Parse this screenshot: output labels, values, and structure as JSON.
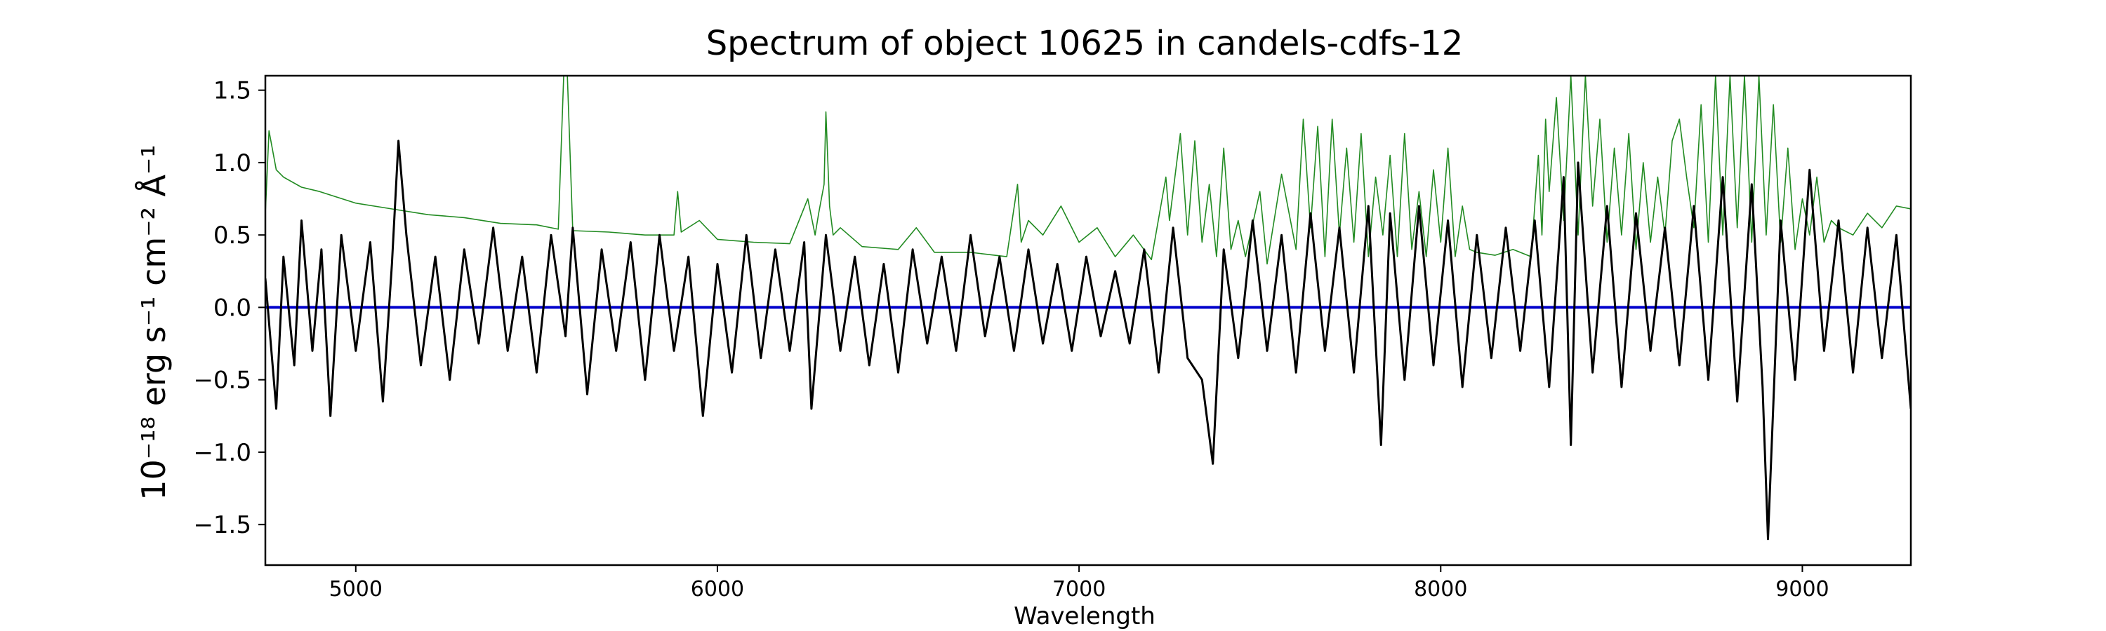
{
  "chart_data": {
    "type": "line",
    "title": "Spectrum of object 10625 in candels-cdfs-12",
    "xlabel": "Wavelength",
    "ylabel": "10⁻¹⁸ erg s⁻¹ cm⁻² Å⁻¹",
    "xlim": [
      4750,
      9300
    ],
    "ylim": [
      -1.78,
      1.6
    ],
    "x_ticks": [
      5000,
      6000,
      7000,
      8000,
      9000
    ],
    "y_ticks": [
      -1.5,
      -1.0,
      -0.5,
      0.0,
      0.5,
      1.0,
      1.5
    ],
    "y_tick_labels": [
      "−1.5",
      "−1.0",
      "−0.5",
      "0.0",
      "0.5",
      "1.0",
      "1.5"
    ],
    "grid": false,
    "colors": {
      "flux": "#000000",
      "error": "#228B22",
      "zero": "#0000cc"
    },
    "series": [
      {
        "role": "flux",
        "x": [
          4750,
          4780,
          4800,
          4830,
          4850,
          4880,
          4905,
          4930,
          4960,
          5000,
          5040,
          5075,
          5100,
          5118,
          5140,
          5180,
          5220,
          5260,
          5300,
          5340,
          5380,
          5420,
          5460,
          5500,
          5540,
          5580,
          5600,
          5640,
          5680,
          5720,
          5760,
          5800,
          5840,
          5880,
          5920,
          5960,
          6000,
          6040,
          6080,
          6120,
          6160,
          6200,
          6240,
          6260,
          6300,
          6340,
          6380,
          6420,
          6460,
          6500,
          6540,
          6580,
          6620,
          6660,
          6700,
          6740,
          6780,
          6820,
          6860,
          6900,
          6940,
          6980,
          7020,
          7060,
          7100,
          7140,
          7180,
          7220,
          7260,
          7300,
          7340,
          7370,
          7400,
          7440,
          7480,
          7520,
          7560,
          7600,
          7640,
          7680,
          7720,
          7760,
          7800,
          7835,
          7860,
          7900,
          7940,
          7980,
          8020,
          8060,
          8100,
          8140,
          8180,
          8220,
          8260,
          8300,
          8340,
          8360,
          8380,
          8420,
          8460,
          8500,
          8540,
          8580,
          8620,
          8660,
          8700,
          8740,
          8780,
          8820,
          8860,
          8890,
          8905,
          8940,
          8980,
          9020,
          9060,
          9100,
          9140,
          9180,
          9220,
          9260,
          9300
        ],
        "y": [
          0.2,
          -0.7,
          0.35,
          -0.4,
          0.6,
          -0.3,
          0.4,
          -0.75,
          0.5,
          -0.3,
          0.45,
          -0.65,
          0.3,
          1.15,
          0.5,
          -0.4,
          0.35,
          -0.5,
          0.4,
          -0.25,
          0.55,
          -0.3,
          0.35,
          -0.45,
          0.5,
          -0.2,
          0.55,
          -0.6,
          0.4,
          -0.3,
          0.45,
          -0.5,
          0.5,
          -0.3,
          0.35,
          -0.75,
          0.3,
          -0.45,
          0.5,
          -0.35,
          0.4,
          -0.3,
          0.45,
          -0.7,
          0.5,
          -0.3,
          0.35,
          -0.4,
          0.3,
          -0.45,
          0.4,
          -0.25,
          0.35,
          -0.3,
          0.5,
          -0.2,
          0.35,
          -0.3,
          0.4,
          -0.25,
          0.3,
          -0.3,
          0.35,
          -0.2,
          0.25,
          -0.25,
          0.4,
          -0.45,
          0.55,
          -0.35,
          -0.5,
          -1.08,
          0.4,
          -0.35,
          0.6,
          -0.3,
          0.5,
          -0.45,
          0.65,
          -0.3,
          0.55,
          -0.45,
          0.7,
          -0.95,
          0.65,
          -0.5,
          0.7,
          -0.4,
          0.6,
          -0.55,
          0.5,
          -0.35,
          0.55,
          -0.3,
          0.6,
          -0.55,
          0.9,
          -0.95,
          1.0,
          -0.45,
          0.7,
          -0.55,
          0.65,
          -0.3,
          0.55,
          -0.4,
          0.7,
          -0.5,
          0.9,
          -0.65,
          0.85,
          -0.55,
          -1.6,
          0.6,
          -0.5,
          0.95,
          -0.3,
          0.6,
          -0.45,
          0.55,
          -0.35,
          0.5,
          -0.7
        ]
      },
      {
        "role": "error",
        "x": [
          4750,
          4760,
          4780,
          4800,
          4850,
          4900,
          4950,
          5000,
          5100,
          5200,
          5300,
          5400,
          5500,
          5560,
          5575,
          5585,
          5600,
          5700,
          5800,
          5880,
          5890,
          5900,
          5950,
          6000,
          6100,
          6200,
          6250,
          6270,
          6280,
          6295,
          6300,
          6310,
          6320,
          6340,
          6400,
          6500,
          6550,
          6600,
          6700,
          6800,
          6830,
          6840,
          6860,
          6900,
          6950,
          7000,
          7050,
          7100,
          7150,
          7200,
          7240,
          7250,
          7280,
          7300,
          7320,
          7340,
          7360,
          7380,
          7400,
          7420,
          7440,
          7460,
          7500,
          7520,
          7560,
          7600,
          7620,
          7640,
          7660,
          7680,
          7700,
          7720,
          7740,
          7760,
          7780,
          7800,
          7820,
          7840,
          7860,
          7880,
          7900,
          7920,
          7940,
          7960,
          7980,
          8000,
          8020,
          8040,
          8060,
          8080,
          8100,
          8150,
          8200,
          8250,
          8270,
          8280,
          8290,
          8300,
          8320,
          8340,
          8360,
          8380,
          8400,
          8420,
          8440,
          8460,
          8480,
          8500,
          8520,
          8540,
          8560,
          8580,
          8600,
          8620,
          8640,
          8660,
          8680,
          8700,
          8720,
          8740,
          8760,
          8780,
          8800,
          8820,
          8840,
          8860,
          8880,
          8900,
          8920,
          8940,
          8960,
          8980,
          9000,
          9020,
          9040,
          9060,
          9080,
          9100,
          9140,
          9180,
          9220,
          9260,
          9300
        ],
        "y": [
          0.65,
          1.22,
          0.95,
          0.9,
          0.83,
          0.8,
          0.76,
          0.72,
          0.68,
          0.64,
          0.62,
          0.58,
          0.57,
          0.54,
          1.6,
          1.6,
          0.53,
          0.52,
          0.5,
          0.5,
          0.8,
          0.52,
          0.6,
          0.47,
          0.45,
          0.44,
          0.75,
          0.5,
          0.65,
          0.85,
          1.35,
          0.7,
          0.5,
          0.55,
          0.42,
          0.4,
          0.55,
          0.38,
          0.38,
          0.35,
          0.85,
          0.45,
          0.6,
          0.5,
          0.7,
          0.45,
          0.55,
          0.35,
          0.5,
          0.33,
          0.9,
          0.6,
          1.2,
          0.5,
          1.15,
          0.45,
          0.85,
          0.35,
          1.1,
          0.4,
          0.6,
          0.35,
          0.8,
          0.3,
          0.92,
          0.4,
          1.3,
          0.55,
          1.25,
          0.35,
          1.3,
          0.5,
          1.1,
          0.45,
          1.2,
          0.35,
          0.9,
          0.5,
          1.05,
          0.35,
          1.2,
          0.4,
          0.8,
          0.35,
          0.95,
          0.45,
          1.1,
          0.35,
          0.7,
          0.4,
          0.38,
          0.36,
          0.4,
          0.35,
          1.05,
          0.5,
          1.3,
          0.8,
          1.45,
          0.6,
          1.6,
          0.5,
          1.6,
          0.7,
          1.3,
          0.45,
          1.1,
          0.5,
          1.2,
          0.4,
          1.0,
          0.45,
          0.9,
          0.5,
          1.15,
          1.3,
          0.9,
          0.55,
          1.4,
          0.45,
          1.6,
          0.5,
          1.6,
          0.55,
          1.6,
          0.45,
          1.6,
          0.5,
          1.4,
          0.45,
          1.1,
          0.4,
          0.75,
          0.5,
          0.9,
          0.45,
          0.6,
          0.55,
          0.5,
          0.65,
          0.55,
          0.7,
          0.68
        ]
      },
      {
        "role": "zero",
        "x": [
          4750,
          9300
        ],
        "y": [
          0,
          0
        ]
      }
    ]
  }
}
